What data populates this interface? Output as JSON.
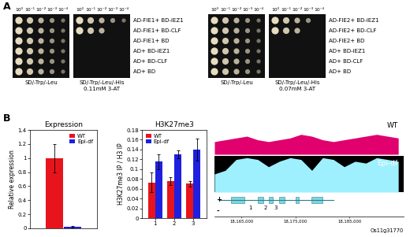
{
  "panel_labels": [
    "A",
    "B"
  ],
  "y2h": {
    "dilutions": [
      "10⁰",
      "10⁻¹",
      "10⁻²",
      "10⁻³",
      "10⁻⁴"
    ],
    "panels": [
      {
        "media": [
          "SD/-Trp/-Leu",
          "SD/-Trp/-Leu/-His"
        ],
        "selection": "0.11mM 3-AT",
        "rows": [
          {
            "label": "AD-FIE1+ BD-iEZ1",
            "growth": [
              5,
              5
            ]
          },
          {
            "label": "AD-FIE1+ BD-CLF",
            "growth": [
              5,
              3
            ]
          },
          {
            "label": "AD-FIE1+ BD",
            "growth": [
              5,
              0
            ]
          },
          {
            "label": "AD+ BD-iEZ1",
            "growth": [
              5,
              0
            ]
          },
          {
            "label": "AD+ BD-CLF",
            "growth": [
              5,
              0
            ]
          },
          {
            "label": "AD+ BD",
            "growth": [
              5,
              0
            ]
          }
        ]
      },
      {
        "media": [
          "SD/-Trp/-Leu",
          "SD/-Trp/-Leu/-His"
        ],
        "selection": "0.07mM 3-AT",
        "rows": [
          {
            "label": "AD-FIE2+ BD-iEZ1",
            "growth": [
              5,
              4
            ]
          },
          {
            "label": "AD-FIE2+ BD-CLF",
            "growth": [
              5,
              3
            ]
          },
          {
            "label": "AD-FIE2+ BD",
            "growth": [
              5,
              0
            ]
          },
          {
            "label": "AD+ BD-iEZ1",
            "growth": [
              5,
              0
            ]
          },
          {
            "label": "AD+ BD-CLF",
            "growth": [
              5,
              0
            ]
          },
          {
            "label": "AD+ BD",
            "growth": [
              5,
              0
            ]
          }
        ]
      }
    ]
  },
  "chart_data": [
    {
      "type": "bar",
      "title": "Expression",
      "y_label": "Relative expression",
      "categories": [
        null
      ],
      "series": [
        {
          "name": "WT",
          "color": "#e8141c",
          "values": [
            1.0
          ],
          "errors": [
            0.2
          ]
        },
        {
          "name": "Epi-df",
          "color": "#1f1fe0",
          "values": [
            0.02
          ],
          "errors": [
            0.01
          ]
        }
      ],
      "ylim": [
        0,
        1.4
      ],
      "yticks": [
        0,
        0.2,
        0.4,
        0.6,
        0.8,
        1,
        1.2,
        1.4
      ],
      "legend": "upper right",
      "grid": false
    },
    {
      "type": "bar",
      "title": "H3K27me3",
      "y_label": "H3K27me3 IP / H3 IP",
      "categories": [
        "1",
        "2",
        "3"
      ],
      "series": [
        {
          "name": "WT",
          "color": "#e8141c",
          "values": [
            0.073,
            0.076,
            0.07
          ],
          "errors": [
            0.02,
            0.008,
            0.005
          ]
        },
        {
          "name": "Epi-df",
          "color": "#1f1fe0",
          "values": [
            0.115,
            0.13,
            0.14
          ],
          "errors": [
            0.015,
            0.008,
            0.022
          ]
        }
      ],
      "ylim": [
        0,
        0.18
      ],
      "yticks": [
        0,
        0.02,
        0.04,
        0.06,
        0.08,
        0.1,
        0.12,
        0.14,
        0.16,
        0.18
      ],
      "legend": "upper left",
      "grid": false
    }
  ],
  "track": {
    "x": [
      18160000,
      18162000,
      18164000,
      18166000,
      18168000,
      18170000,
      18172000,
      18174000,
      18176000,
      18178000,
      18180000,
      18182000,
      18184000,
      18186000,
      18188000,
      18190000,
      18192000,
      18194000
    ],
    "xlim": [
      18160000,
      18195000
    ],
    "xticks": [
      {
        "value": 18165000,
        "label": "18,165,000"
      },
      {
        "value": 18175000,
        "label": "18,175,000"
      },
      {
        "value": 18185000,
        "label": "18,185,000"
      }
    ],
    "ylim": [
      0,
      1
    ],
    "tick_labels": "x",
    "samples": [
      {
        "name": "WT",
        "color": "#e0006e",
        "values": [
          0.35,
          0.4,
          0.45,
          0.5,
          0.4,
          0.35,
          0.4,
          0.45,
          0.55,
          0.5,
          0.4,
          0.35,
          0.4,
          0.45,
          0.5,
          0.55,
          0.5,
          0.45
        ]
      },
      {
        "name": "Epi-df",
        "color": "#9ff0ff",
        "values": [
          0.5,
          0.6,
          0.9,
          0.95,
          0.9,
          0.7,
          0.85,
          0.95,
          0.9,
          0.6,
          0.95,
          0.9,
          0.7,
          0.85,
          0.8,
          0.95,
          0.9,
          0.85
        ]
      }
    ],
    "strands": [
      "+",
      "-"
    ],
    "gene": {
      "name": "Os11g31770",
      "start": 18161000,
      "end": 18182000,
      "exons": [
        [
          18163000,
          18165500
        ],
        [
          18168000,
          18169000
        ],
        [
          18170000,
          18170800
        ],
        [
          18172000,
          18173000
        ],
        [
          18175000,
          18175600
        ],
        [
          18178000,
          18180000
        ]
      ]
    },
    "regions": [
      {
        "label": "1",
        "x": 18166700
      },
      {
        "label": "2",
        "x": 18169500
      },
      {
        "label": "3",
        "x": 18171400
      }
    ]
  }
}
